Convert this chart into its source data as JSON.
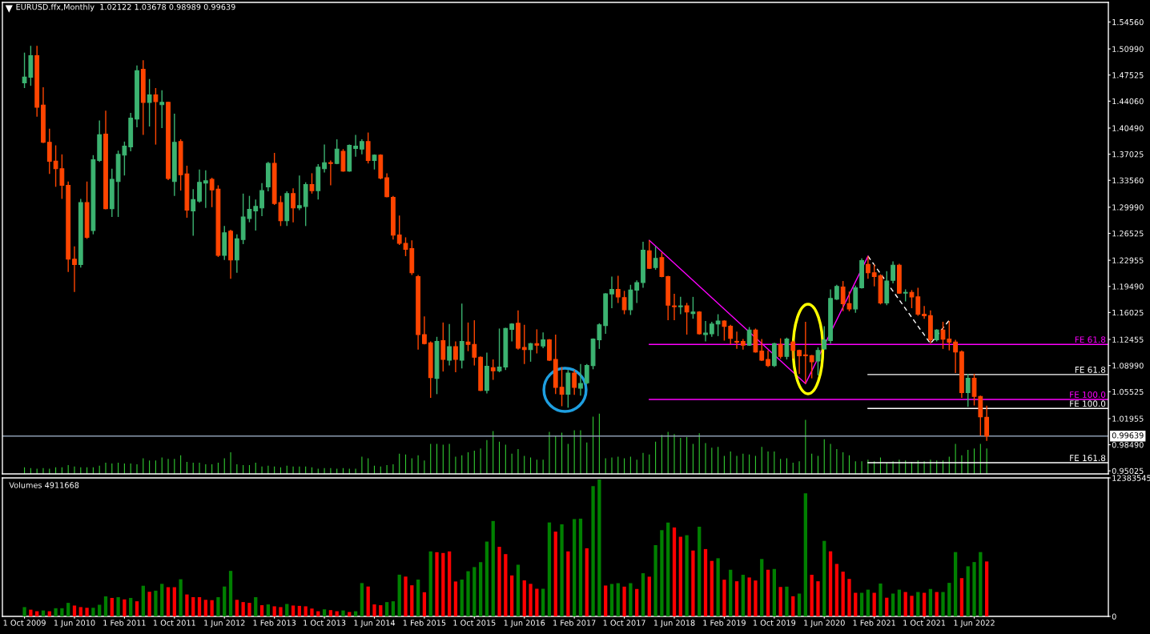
{
  "chart_data": [
    {
      "type": "candlestick",
      "title": "EURUSD.ffx,Monthly  1.02122 1.03678 0.98989 0.99639",
      "x": [
        "2009-10",
        "2009-11",
        "2009-12",
        "2010-01",
        "2010-02",
        "2010-03",
        "2010-04",
        "2010-05",
        "2010-06",
        "2010-07",
        "2010-08",
        "2010-09",
        "2010-10",
        "2010-11",
        "2010-12",
        "2011-01",
        "2011-02",
        "2011-03",
        "2011-04",
        "2011-05",
        "2011-06",
        "2011-07",
        "2011-08",
        "2011-09",
        "2011-10",
        "2011-11",
        "2011-12",
        "2012-01",
        "2012-02",
        "2012-03",
        "2012-04",
        "2012-05",
        "2012-06",
        "2012-07",
        "2012-08",
        "2012-09",
        "2012-10",
        "2012-11",
        "2012-12",
        "2013-01",
        "2013-02",
        "2013-03",
        "2013-04",
        "2013-05",
        "2013-06",
        "2013-07",
        "2013-08",
        "2013-09",
        "2013-10",
        "2013-11",
        "2013-12",
        "2014-01",
        "2014-02",
        "2014-03",
        "2014-04",
        "2014-05",
        "2014-06",
        "2014-07",
        "2014-08",
        "2014-09",
        "2014-10",
        "2014-11",
        "2014-12",
        "2015-01",
        "2015-02",
        "2015-03",
        "2015-04",
        "2015-05",
        "2015-06",
        "2015-07",
        "2015-08",
        "2015-09",
        "2015-10",
        "2015-11",
        "2015-12",
        "2016-01",
        "2016-02",
        "2016-03",
        "2016-04",
        "2016-05",
        "2016-06",
        "2016-07",
        "2016-08",
        "2016-09",
        "2016-10",
        "2016-11",
        "2016-12",
        "2017-01",
        "2017-02",
        "2017-03",
        "2017-04",
        "2017-05",
        "2017-06",
        "2017-07",
        "2017-08",
        "2017-09",
        "2017-10",
        "2017-11",
        "2017-12",
        "2018-01",
        "2018-02",
        "2018-03",
        "2018-04",
        "2018-05",
        "2018-06",
        "2018-07",
        "2018-08",
        "2018-09",
        "2018-10",
        "2018-11",
        "2018-12",
        "2019-01",
        "2019-02",
        "2019-03",
        "2019-04",
        "2019-05",
        "2019-06",
        "2019-07",
        "2019-08",
        "2019-09",
        "2019-10",
        "2019-11",
        "2019-12",
        "2020-01",
        "2020-02",
        "2020-03",
        "2020-04",
        "2020-05",
        "2020-06",
        "2020-07",
        "2020-08",
        "2020-09",
        "2020-10",
        "2020-11",
        "2020-12",
        "2021-01",
        "2021-02",
        "2021-03",
        "2021-04",
        "2021-05",
        "2021-06",
        "2021-07",
        "2021-08",
        "2021-09",
        "2021-10",
        "2021-11",
        "2021-12",
        "2022-01",
        "2022-02",
        "2022-03",
        "2022-04",
        "2022-05",
        "2022-06",
        "2022-07",
        "2022-08"
      ],
      "ohlc": [
        [
          1.465,
          1.505,
          1.458,
          1.4725
        ],
        [
          1.4725,
          1.514,
          1.461,
          1.501
        ],
        [
          1.501,
          1.514,
          1.42,
          1.4325
        ],
        [
          1.4354,
          1.459,
          1.385,
          1.386
        ],
        [
          1.386,
          1.404,
          1.344,
          1.361
        ],
        [
          1.361,
          1.382,
          1.327,
          1.351
        ],
        [
          1.351,
          1.37,
          1.311,
          1.329
        ],
        [
          1.329,
          1.334,
          1.214,
          1.231
        ],
        [
          1.231,
          1.248,
          1.1875,
          1.224
        ],
        [
          1.224,
          1.311,
          1.22,
          1.306
        ],
        [
          1.306,
          1.334,
          1.258,
          1.26
        ],
        [
          1.269,
          1.369,
          1.264,
          1.363
        ],
        [
          1.362,
          1.415,
          1.36,
          1.396
        ],
        [
          1.397,
          1.428,
          1.297,
          1.298
        ],
        [
          1.298,
          1.351,
          1.287,
          1.337
        ],
        [
          1.334,
          1.375,
          1.287,
          1.37
        ],
        [
          1.369,
          1.387,
          1.342,
          1.381
        ],
        [
          1.38,
          1.425,
          1.374,
          1.418
        ],
        [
          1.417,
          1.488,
          1.406,
          1.481
        ],
        [
          1.483,
          1.495,
          1.396,
          1.439
        ],
        [
          1.439,
          1.47,
          1.407,
          1.449
        ],
        [
          1.449,
          1.458,
          1.383,
          1.44
        ],
        [
          1.436,
          1.455,
          1.405,
          1.439
        ],
        [
          1.439,
          1.44,
          1.336,
          1.338
        ],
        [
          1.334,
          1.424,
          1.315,
          1.386
        ],
        [
          1.387,
          1.39,
          1.322,
          1.343
        ],
        [
          1.344,
          1.355,
          1.286,
          1.296
        ],
        [
          1.295,
          1.324,
          1.262,
          1.31
        ],
        [
          1.308,
          1.35,
          1.306,
          1.333
        ],
        [
          1.332,
          1.349,
          1.299,
          1.335
        ],
        [
          1.337,
          1.339,
          1.3,
          1.323
        ],
        [
          1.324,
          1.329,
          1.234,
          1.236
        ],
        [
          1.236,
          1.275,
          1.23,
          1.266
        ],
        [
          1.268,
          1.27,
          1.205,
          1.23
        ],
        [
          1.23,
          1.264,
          1.213,
          1.258
        ],
        [
          1.257,
          1.318,
          1.251,
          1.287
        ],
        [
          1.285,
          1.315,
          1.28,
          1.297
        ],
        [
          1.295,
          1.31,
          1.269,
          1.301
        ],
        [
          1.299,
          1.332,
          1.288,
          1.322
        ],
        [
          1.327,
          1.36,
          1.321,
          1.358
        ],
        [
          1.358,
          1.372,
          1.303,
          1.305
        ],
        [
          1.306,
          1.315,
          1.275,
          1.282
        ],
        [
          1.282,
          1.321,
          1.275,
          1.318
        ],
        [
          1.318,
          1.325,
          1.28,
          1.299
        ],
        [
          1.299,
          1.342,
          1.296,
          1.302
        ],
        [
          1.301,
          1.333,
          1.275,
          1.33
        ],
        [
          1.33,
          1.345,
          1.318,
          1.322
        ],
        [
          1.322,
          1.357,
          1.31,
          1.353
        ],
        [
          1.351,
          1.383,
          1.346,
          1.359
        ],
        [
          1.359,
          1.362,
          1.329,
          1.358
        ],
        [
          1.358,
          1.39,
          1.357,
          1.377
        ],
        [
          1.374,
          1.377,
          1.347,
          1.348
        ],
        [
          1.348,
          1.383,
          1.347,
          1.382
        ],
        [
          1.378,
          1.396,
          1.367,
          1.381
        ],
        [
          1.377,
          1.39,
          1.37,
          1.387
        ],
        [
          1.387,
          1.399,
          1.358,
          1.362
        ],
        [
          1.362,
          1.37,
          1.35,
          1.369
        ],
        [
          1.369,
          1.37,
          1.337,
          1.3385
        ],
        [
          1.339,
          1.345,
          1.313,
          1.314
        ],
        [
          1.313,
          1.315,
          1.257,
          1.263
        ],
        [
          1.263,
          1.289,
          1.25,
          1.252
        ],
        [
          1.252,
          1.26,
          1.235,
          1.244
        ],
        [
          1.245,
          1.256,
          1.21,
          1.213
        ],
        [
          1.208,
          1.21,
          1.111,
          1.131
        ],
        [
          1.131,
          1.155,
          1.118,
          1.119
        ],
        [
          1.12,
          1.122,
          1.047,
          1.074
        ],
        [
          1.073,
          1.128,
          1.052,
          1.122
        ],
        [
          1.123,
          1.147,
          1.082,
          1.098
        ],
        [
          1.097,
          1.145,
          1.09,
          1.115
        ],
        [
          1.115,
          1.122,
          1.081,
          1.098
        ],
        [
          1.097,
          1.172,
          1.086,
          1.122
        ],
        [
          1.121,
          1.147,
          1.109,
          1.118
        ],
        [
          1.118,
          1.15,
          1.09,
          1.101
        ],
        [
          1.101,
          1.102,
          1.056,
          1.057
        ],
        [
          1.057,
          1.107,
          1.053,
          1.089
        ],
        [
          1.087,
          1.098,
          1.071,
          1.083
        ],
        [
          1.083,
          1.139,
          1.081,
          1.088
        ],
        [
          1.088,
          1.14,
          1.084,
          1.139
        ],
        [
          1.138,
          1.146,
          1.122,
          1.145
        ],
        [
          1.146,
          1.163,
          1.111,
          1.113
        ],
        [
          1.114,
          1.144,
          1.092,
          1.111
        ],
        [
          1.111,
          1.12,
          1.095,
          1.119
        ],
        [
          1.119,
          1.138,
          1.106,
          1.117
        ],
        [
          1.116,
          1.134,
          1.113,
          1.124
        ],
        [
          1.124,
          1.125,
          1.096,
          1.097
        ],
        [
          1.098,
          1.131,
          1.052,
          1.061
        ],
        [
          1.061,
          1.088,
          1.036,
          1.052
        ],
        [
          1.052,
          1.084,
          1.034,
          1.08
        ],
        [
          1.08,
          1.084,
          1.051,
          1.061
        ],
        [
          1.06,
          1.092,
          1.05,
          1.066
        ],
        [
          1.067,
          1.092,
          1.065,
          1.09
        ],
        [
          1.09,
          1.126,
          1.085,
          1.125
        ],
        [
          1.124,
          1.146,
          1.112,
          1.144
        ],
        [
          1.143,
          1.186,
          1.132,
          1.185
        ],
        [
          1.185,
          1.208,
          1.166,
          1.191
        ],
        [
          1.191,
          1.209,
          1.173,
          1.181
        ],
        [
          1.18,
          1.189,
          1.158,
          1.164
        ],
        [
          1.164,
          1.197,
          1.157,
          1.19
        ],
        [
          1.19,
          1.203,
          1.173,
          1.2
        ],
        [
          1.2,
          1.254,
          1.193,
          1.243
        ],
        [
          1.242,
          1.256,
          1.218,
          1.219
        ],
        [
          1.22,
          1.248,
          1.217,
          1.232
        ],
        [
          1.233,
          1.24,
          1.207,
          1.208
        ],
        [
          1.208,
          1.209,
          1.15,
          1.17
        ],
        [
          1.169,
          1.185,
          1.15,
          1.168
        ],
        [
          1.168,
          1.181,
          1.158,
          1.169
        ],
        [
          1.169,
          1.173,
          1.131,
          1.161
        ],
        [
          1.159,
          1.181,
          1.152,
          1.161
        ],
        [
          1.161,
          1.162,
          1.131,
          1.132
        ],
        [
          1.131,
          1.149,
          1.122,
          1.133
        ],
        [
          1.132,
          1.148,
          1.128,
          1.145
        ],
        [
          1.145,
          1.158,
          1.129,
          1.149
        ],
        [
          1.149,
          1.15,
          1.123,
          1.142
        ],
        [
          1.142,
          1.144,
          1.118,
          1.126
        ],
        [
          1.122,
          1.135,
          1.112,
          1.121
        ],
        [
          1.122,
          1.125,
          1.111,
          1.117
        ],
        [
          1.117,
          1.141,
          1.116,
          1.137
        ],
        [
          1.137,
          1.139,
          1.107,
          1.108
        ],
        [
          1.109,
          1.125,
          1.096,
          1.097
        ],
        [
          1.098,
          1.11,
          1.088,
          1.09
        ],
        [
          1.09,
          1.12,
          1.088,
          1.119
        ],
        [
          1.118,
          1.126,
          1.099,
          1.102
        ],
        [
          1.102,
          1.127,
          1.098,
          1.125
        ],
        [
          1.121,
          1.123,
          1.099,
          1.11
        ],
        [
          1.11,
          1.111,
          1.079,
          1.103
        ],
        [
          1.104,
          1.148,
          1.066,
          1.103
        ],
        [
          1.103,
          1.104,
          1.073,
          1.095
        ],
        [
          1.096,
          1.114,
          1.077,
          1.11
        ],
        [
          1.112,
          1.142,
          1.111,
          1.124
        ],
        [
          1.123,
          1.191,
          1.119,
          1.179
        ],
        [
          1.178,
          1.197,
          1.177,
          1.195
        ],
        [
          1.194,
          1.202,
          1.162,
          1.172
        ],
        [
          1.172,
          1.188,
          1.162,
          1.165
        ],
        [
          1.165,
          1.196,
          1.16,
          1.193
        ],
        [
          1.193,
          1.232,
          1.192,
          1.229
        ],
        [
          1.224,
          1.235,
          1.205,
          1.213
        ],
        [
          1.213,
          1.224,
          1.195,
          1.208
        ],
        [
          1.209,
          1.211,
          1.171,
          1.173
        ],
        [
          1.173,
          1.215,
          1.17,
          1.202
        ],
        [
          1.203,
          1.228,
          1.199,
          1.223
        ],
        [
          1.223,
          1.225,
          1.185,
          1.186
        ],
        [
          1.186,
          1.191,
          1.175,
          1.187
        ],
        [
          1.187,
          1.19,
          1.166,
          1.181
        ],
        [
          1.181,
          1.193,
          1.156,
          1.158
        ],
        [
          1.158,
          1.169,
          1.152,
          1.156
        ],
        [
          1.156,
          1.163,
          1.119,
          1.124
        ],
        [
          1.124,
          1.138,
          1.122,
          1.137
        ],
        [
          1.137,
          1.148,
          1.112,
          1.125
        ],
        [
          1.125,
          1.149,
          1.11,
          1.121
        ],
        [
          1.121,
          1.124,
          1.08,
          1.108
        ],
        [
          1.108,
          1.11,
          1.047,
          1.054
        ],
        [
          1.054,
          1.079,
          1.035,
          1.073
        ],
        [
          1.073,
          1.079,
          1.037,
          1.049
        ],
        [
          1.049,
          1.05,
          0.997,
          1.022
        ],
        [
          1.02122,
          1.03678,
          0.98989,
          0.99639
        ]
      ],
      "colors": [
        "#3cb371",
        "#3cb371",
        "#ff4500",
        "#ff4500",
        "#ff4500",
        "#ff4500",
        "#ff4500",
        "#ff4500",
        "#ff4500",
        "#3cb371",
        "#ff4500",
        "#3cb371",
        "#3cb371",
        "#ff4500",
        "#3cb371",
        "#3cb371",
        "#3cb371",
        "#3cb371",
        "#3cb371",
        "#ff4500",
        "#3cb371",
        "#ff4500",
        "#3cb371",
        "#ff4500",
        "#3cb371",
        "#ff4500",
        "#ff4500",
        "#3cb371",
        "#3cb371",
        "#3cb371",
        "#ff4500",
        "#ff4500",
        "#3cb371",
        "#ff4500",
        "#3cb371",
        "#3cb371",
        "#3cb371",
        "#3cb371",
        "#3cb371",
        "#3cb371",
        "#ff4500",
        "#ff4500",
        "#3cb371",
        "#ff4500",
        "#3cb371",
        "#3cb371",
        "#ff4500",
        "#3cb371",
        "#3cb371",
        "#ff4500",
        "#3cb371",
        "#ff4500",
        "#3cb371",
        "#3cb371",
        "#3cb371",
        "#ff4500",
        "#3cb371",
        "#ff4500",
        "#ff4500",
        "#ff4500",
        "#ff4500",
        "#ff4500",
        "#ff4500",
        "#ff4500",
        "#ff4500",
        "#ff4500",
        "#3cb371",
        "#ff4500",
        "#3cb371",
        "#ff4500",
        "#3cb371",
        "#ff4500",
        "#ff4500",
        "#ff4500",
        "#3cb371",
        "#ff4500",
        "#3cb371",
        "#3cb371",
        "#3cb371",
        "#ff4500",
        "#ff4500",
        "#3cb371",
        "#ff4500",
        "#3cb371",
        "#ff4500",
        "#ff4500",
        "#ff4500",
        "#3cb371",
        "#ff4500",
        "#3cb371",
        "#3cb371",
        "#3cb371",
        "#3cb371",
        "#3cb371",
        "#3cb371",
        "#ff4500",
        "#ff4500",
        "#3cb371",
        "#3cb371",
        "#3cb371",
        "#ff4500",
        "#3cb371",
        "#ff4500",
        "#ff4500",
        "#ff4500",
        "#3cb371",
        "#ff4500",
        "#3cb371",
        "#ff4500",
        "#3cb371",
        "#3cb371",
        "#3cb371",
        "#ff4500",
        "#ff4500",
        "#ff4500",
        "#ff4500",
        "#3cb371",
        "#ff4500",
        "#ff4500",
        "#ff4500",
        "#3cb371",
        "#ff4500",
        "#3cb371",
        "#ff4500",
        "#ff4500",
        "#ff4500",
        "#ff4500",
        "#3cb371",
        "#3cb371",
        "#3cb371",
        "#3cb371",
        "#ff4500",
        "#ff4500",
        "#3cb371",
        "#3cb371",
        "#ff4500",
        "#ff4500",
        "#ff4500",
        "#3cb371",
        "#3cb371",
        "#ff4500",
        "#3cb371",
        "#ff4500",
        "#ff4500",
        "#ff4500",
        "#ff4500",
        "#3cb371",
        "#ff4500",
        "#ff4500",
        "#ff4500",
        "#ff4500",
        "#3cb371",
        "#ff4500",
        "#ff4500",
        "#ff4500"
      ],
      "xlim": [
        "2009-06-15",
        "2024-03-15"
      ],
      "ylim": [
        0.9462,
        1.5716
      ],
      "yticks": [
        {
          "value": 1.5456,
          "label": "1.54560"
        },
        {
          "value": 1.5099,
          "label": "1.50990"
        },
        {
          "value": 1.47525,
          "label": "1.47525"
        },
        {
          "value": 1.4406,
          "label": "1.44060"
        },
        {
          "value": 1.4049,
          "label": "1.40490"
        },
        {
          "value": 1.37025,
          "label": "1.37025"
        },
        {
          "value": 1.3356,
          "label": "1.33560"
        },
        {
          "value": 1.2999,
          "label": "1.29990"
        },
        {
          "value": 1.26525,
          "label": "1.26525"
        },
        {
          "value": 1.22955,
          "label": "1.22955"
        },
        {
          "value": 1.1949,
          "label": "1.19490"
        },
        {
          "value": 1.16025,
          "label": "1.16025"
        },
        {
          "value": 1.12455,
          "label": "1.12455"
        },
        {
          "value": 1.0899,
          "label": "1.08990"
        },
        {
          "value": 1.05525,
          "label": "1.05525"
        },
        {
          "value": 1.01955,
          "label": "1.01955"
        },
        {
          "value": 0.9849,
          "label": "0.98490"
        },
        {
          "value": 0.95025,
          "label": "0.95025"
        }
      ],
      "tick_labels": "y",
      "ref_lines": [
        {
          "axis": "y",
          "value": 0.99639,
          "label": "0.99639",
          "color": "#8c9cb0"
        }
      ],
      "series": [
        {
          "type": "bar",
          "color": "#32cd32",
          "values": [
            0.955,
            0.954,
            0.953,
            0.954,
            0.953,
            0.955,
            0.955,
            0.958,
            0.956,
            0.955,
            0.955,
            0.955,
            0.957,
            0.961,
            0.96,
            0.961,
            0.96,
            0.96,
            0.959,
            0.967,
            0.964,
            0.964,
            0.968,
            0.966,
            0.966,
            0.971,
            0.962,
            0.961,
            0.961,
            0.959,
            0.959,
            0.961,
            0.967,
            0.975,
            0.959,
            0.958,
            0.958,
            0.961,
            0.956,
            0.957,
            0.956,
            0.955,
            0.957,
            0.956,
            0.956,
            0.956,
            0.955,
            0.953,
            0.954,
            0.954,
            0.953,
            0.954,
            0.953,
            0.953,
            0.969,
            0.967,
            0.957,
            0.956,
            0.958,
            0.959,
            0.973,
            0.972,
            0.967,
            0.971,
            0.964,
            0.986,
            0.986,
            0.985,
            0.986,
            0.969,
            0.971,
            0.975,
            0.977,
            0.98,
            0.991,
            1.003,
            0.989,
            0.985,
            0.973,
            0.979,
            0.97,
            0.968,
            0.965,
            0.965,
            1.002,
            0.997,
            1.001,
            0.986,
            1.004,
            1.004,
            0.988,
            1.022,
            1.026,
            0.967,
            0.968,
            0.969,
            0.967,
            0.969,
            0.965,
            0.974,
            0.972,
            0.989,
            0.998,
            1.002,
            0.999,
            0.994,
            0.995,
            0.986,
            1.0,
            0.987,
            0.981,
            0.982,
            0.97,
            0.976,
            0.97,
            0.973,
            0.972,
            0.97,
            0.982,
            0.976,
            0.976,
            0.966,
            0.967,
            0.961,
            0.963,
            1.018,
            0.973,
            0.97,
            0.992,
            0.986,
            0.979,
            0.975,
            0.971,
            0.963,
            0.963,
            0.965,
            0.963,
            0.968,
            0.961,
            0.963,
            0.965,
            0.964,
            0.962,
            0.964,
            0.963,
            0.965,
            0.964,
            0.964,
            0.969,
            0.986,
            0.971,
            0.978,
            0.98,
            0.986,
            0.98
          ]
        },
        {
          "type": "line",
          "color": "#ff00ff",
          "x": [
            "2018-02",
            "2020-03",
            "2021-01"
          ],
          "values": [
            1.256,
            1.066,
            1.235
          ]
        },
        {
          "type": "line",
          "color": "#ffffff",
          "line_style": "dashed",
          "x": [
            "2021-01",
            "2021-11",
            "2022-02"
          ],
          "values": [
            1.235,
            1.119,
            1.15
          ]
        },
        {
          "type": "line",
          "color": "#ff00ff",
          "x": [
            "2018-02",
            "2024-03-15"
          ],
          "values": [
            1.118,
            1.118
          ]
        },
        {
          "type": "line",
          "color": "#ff00ff",
          "x": [
            "2018-02",
            "2024-03-15"
          ],
          "values": [
            1.045,
            1.045
          ]
        },
        {
          "type": "line",
          "color": "#ffffff",
          "x": [
            "2021-01",
            "2024-03-15"
          ],
          "values": [
            1.078,
            1.078
          ]
        },
        {
          "type": "line",
          "color": "#ffffff",
          "x": [
            "2021-01",
            "2024-03-15"
          ],
          "values": [
            1.033,
            1.033
          ]
        },
        {
          "type": "line",
          "color": "#ffffff",
          "x": [
            "2021-01",
            "2024-03-15"
          ],
          "values": [
            0.961,
            0.961
          ]
        }
      ],
      "annotations": [
        {
          "text": "FE 61.8",
          "x": "2024-03-15",
          "y": 1.118
        },
        {
          "text": "FE 100.0",
          "x": "2024-03-15",
          "y": 1.045
        },
        {
          "text": "FE 61.8",
          "x": "2024-03-15",
          "y": 1.078
        },
        {
          "text": "FE 100.0",
          "x": "2024-03-15",
          "y": 1.033
        },
        {
          "text": "FE 161.8",
          "x": "2024-03-15",
          "y": 0.961
        }
      ],
      "grid": false,
      "legend": false
    },
    {
      "type": "bar",
      "x": [
        "2009-10",
        "2009-11",
        "2009-12",
        "2010-01",
        "2010-02",
        "2010-03",
        "2010-04",
        "2010-05",
        "2010-06",
        "2010-07",
        "2010-08",
        "2010-09",
        "2010-10",
        "2010-11",
        "2010-12",
        "2011-01",
        "2011-02",
        "2011-03",
        "2011-04",
        "2011-05",
        "2011-06",
        "2011-07",
        "2011-08",
        "2011-09",
        "2011-10",
        "2011-11",
        "2011-12",
        "2012-01",
        "2012-02",
        "2012-03",
        "2012-04",
        "2012-05",
        "2012-06",
        "2012-07",
        "2012-08",
        "2012-09",
        "2012-10",
        "2012-11",
        "2012-12",
        "2013-01",
        "2013-02",
        "2013-03",
        "2013-04",
        "2013-05",
        "2013-06",
        "2013-07",
        "2013-08",
        "2013-09",
        "2013-10",
        "2013-11",
        "2013-12",
        "2014-01",
        "2014-02",
        "2014-03",
        "2014-04",
        "2014-05",
        "2014-06",
        "2014-07",
        "2014-08",
        "2014-09",
        "2014-10",
        "2014-11",
        "2014-12",
        "2015-01",
        "2015-02",
        "2015-03",
        "2015-04",
        "2015-05",
        "2015-06",
        "2015-07",
        "2015-08",
        "2015-09",
        "2015-10",
        "2015-11",
        "2015-12",
        "2016-01",
        "2016-02",
        "2016-03",
        "2016-04",
        "2016-05",
        "2016-06",
        "2016-07",
        "2016-08",
        "2016-09",
        "2016-10",
        "2016-11",
        "2016-12",
        "2017-01",
        "2017-02",
        "2017-03",
        "2017-04",
        "2017-05",
        "2017-06",
        "2017-07",
        "2017-08",
        "2017-09",
        "2017-10",
        "2017-11",
        "2017-12",
        "2018-01",
        "2018-02",
        "2018-03",
        "2018-04",
        "2018-05",
        "2018-06",
        "2018-07",
        "2018-08",
        "2018-09",
        "2018-10",
        "2018-11",
        "2018-12",
        "2019-01",
        "2019-02",
        "2019-03",
        "2019-04",
        "2019-05",
        "2019-06",
        "2019-07",
        "2019-08",
        "2019-09",
        "2019-10",
        "2019-11",
        "2019-12",
        "2020-01",
        "2020-02",
        "2020-03",
        "2020-04",
        "2020-05",
        "2020-06",
        "2020-07",
        "2020-08",
        "2020-09",
        "2020-10",
        "2020-11",
        "2020-12",
        "2021-01",
        "2021-02",
        "2021-03",
        "2021-04",
        "2021-05",
        "2021-06",
        "2021-07",
        "2021-08",
        "2021-09",
        "2021-10",
        "2021-11",
        "2021-12",
        "2022-01",
        "2022-02",
        "2022-03",
        "2022-04",
        "2022-05",
        "2022-06",
        "2022-07",
        "2022-08"
      ],
      "values": [
        830000,
        600000,
        460000,
        530000,
        460000,
        730000,
        730000,
        1210000,
        970000,
        830000,
        770000,
        770000,
        1040000,
        1790000,
        1650000,
        1720000,
        1520000,
        1650000,
        1350000,
        2740000,
        2200000,
        2300000,
        2910000,
        2610000,
        2610000,
        3320000,
        1960000,
        1720000,
        1720000,
        1480000,
        1450000,
        1720000,
        2670000,
        4070000,
        1480000,
        1280000,
        1210000,
        1720000,
        1000000,
        1070000,
        900000,
        830000,
        1110000,
        970000,
        940000,
        900000,
        700000,
        460000,
        630000,
        560000,
        460000,
        530000,
        390000,
        460000,
        2980000,
        2670000,
        1070000,
        1000000,
        1280000,
        1350000,
        3730000,
        3560000,
        2780000,
        3290000,
        2160000,
        5810000,
        5740000,
        5670000,
        5810000,
        3120000,
        3290000,
        4040000,
        4410000,
        4850000,
        6690000,
        8530000,
        6220000,
        5570000,
        3660000,
        4620000,
        3220000,
        2910000,
        2470000,
        2470000,
        8400000,
        7580000,
        8230000,
        5810000,
        8700000,
        8740000,
        6090000,
        11650000,
        12240000,
        2760000,
        2900000,
        2970000,
        2660000,
        2970000,
        2450000,
        3860000,
        3550000,
        6370000,
        7710000,
        8390000,
        7950000,
        7120000,
        7260000,
        5890000,
        8020000,
        6020000,
        4960000,
        5200000,
        3280000,
        4170000,
        3140000,
        3720000,
        3480000,
        3210000,
        5130000,
        4170000,
        4240000,
        2630000,
        2660000,
        1800000,
        2040000,
        11000000,
        3720000,
        3140000,
        6750000,
        5820000,
        4690000,
        4000000,
        3350000,
        2110000,
        2110000,
        2390000,
        2110000,
        2940000,
        1670000,
        2040000,
        2390000,
        2180000,
        1840000,
        2180000,
        2110000,
        2450000,
        2180000,
        2180000,
        3000000,
        5750000,
        3420000,
        4480000,
        4860000,
        5750000,
        4911668
      ],
      "colors": [
        "#008000",
        "#ff0000",
        "#ff0000",
        "#008000",
        "#ff0000",
        "#008000",
        "#008000",
        "#008000",
        "#ff0000",
        "#ff0000",
        "#ff0000",
        "#008000",
        "#008000",
        "#008000",
        "#ff0000",
        "#008000",
        "#ff0000",
        "#008000",
        "#ff0000",
        "#008000",
        "#ff0000",
        "#008000",
        "#008000",
        "#ff0000",
        "#ff0000",
        "#008000",
        "#ff0000",
        "#ff0000",
        "#ff0000",
        "#ff0000",
        "#ff0000",
        "#008000",
        "#008000",
        "#008000",
        "#ff0000",
        "#ff0000",
        "#ff0000",
        "#008000",
        "#ff0000",
        "#008000",
        "#ff0000",
        "#ff0000",
        "#008000",
        "#ff0000",
        "#ff0000",
        "#ff0000",
        "#ff0000",
        "#ff0000",
        "#008000",
        "#ff0000",
        "#ff0000",
        "#008000",
        "#ff0000",
        "#008000",
        "#008000",
        "#ff0000",
        "#ff0000",
        "#ff0000",
        "#008000",
        "#008000",
        "#008000",
        "#ff0000",
        "#ff0000",
        "#008000",
        "#ff0000",
        "#008000",
        "#ff0000",
        "#ff0000",
        "#ff0000",
        "#ff0000",
        "#008000",
        "#008000",
        "#008000",
        "#008000",
        "#008000",
        "#008000",
        "#ff0000",
        "#ff0000",
        "#ff0000",
        "#008000",
        "#ff0000",
        "#ff0000",
        "#ff0000",
        "#008000",
        "#008000",
        "#ff0000",
        "#008000",
        "#ff0000",
        "#008000",
        "#008000",
        "#ff0000",
        "#008000",
        "#008000",
        "#ff0000",
        "#008000",
        "#008000",
        "#ff0000",
        "#008000",
        "#ff0000",
        "#008000",
        "#ff0000",
        "#008000",
        "#008000",
        "#008000",
        "#ff0000",
        "#ff0000",
        "#008000",
        "#ff0000",
        "#008000",
        "#ff0000",
        "#ff0000",
        "#008000",
        "#ff0000",
        "#008000",
        "#ff0000",
        "#008000",
        "#ff0000",
        "#ff0000",
        "#008000",
        "#ff0000",
        "#008000",
        "#ff0000",
        "#008000",
        "#ff0000",
        "#008000",
        "#008000",
        "#ff0000",
        "#ff0000",
        "#008000",
        "#ff0000",
        "#ff0000",
        "#ff0000",
        "#ff0000",
        "#ff0000",
        "#008000",
        "#008000",
        "#ff0000",
        "#008000",
        "#ff0000",
        "#008000",
        "#008000",
        "#ff0000",
        "#ff0000",
        "#008000",
        "#ff0000",
        "#008000",
        "#ff0000",
        "#008000",
        "#008000",
        "#008000",
        "#ff0000",
        "#008000",
        "#008000",
        "#008000",
        "#ff0000"
      ],
      "xlim": [
        "2009-06-15",
        "2024-03-15"
      ],
      "ylim": [
        0,
        12383545
      ],
      "yticks": [
        0,
        12383545
      ],
      "xticks": [
        {
          "value": "2009-10",
          "label": "1 Oct 2009"
        },
        {
          "value": "2010-06",
          "label": "1 Jun 2010"
        },
        {
          "value": "2011-02",
          "label": "1 Feb 2011"
        },
        {
          "value": "2011-10",
          "label": "1 Oct 2011"
        },
        {
          "value": "2012-06",
          "label": "1 Jun 2012"
        },
        {
          "value": "2013-02",
          "label": "1 Feb 2013"
        },
        {
          "value": "2013-10",
          "label": "1 Oct 2013"
        },
        {
          "value": "2014-06",
          "label": "1 Jun 2014"
        },
        {
          "value": "2015-02",
          "label": "1 Feb 2015"
        },
        {
          "value": "2015-10",
          "label": "1 Oct 2015"
        },
        {
          "value": "2016-06",
          "label": "1 Jun 2016"
        },
        {
          "value": "2017-02",
          "label": "1 Feb 2017"
        },
        {
          "value": "2017-10",
          "label": "1 Oct 2017"
        },
        {
          "value": "2018-06",
          "label": "1 Jun 2018"
        },
        {
          "value": "2019-02",
          "label": "1 Feb 2019"
        },
        {
          "value": "2019-10",
          "label": "1 Oct 2019"
        },
        {
          "value": "2020-06",
          "label": "1 Jun 2020"
        },
        {
          "value": "2021-02",
          "label": "1 Feb 2021"
        },
        {
          "value": "2021-10",
          "label": "1 Oct 2021"
        },
        {
          "value": "2022-06",
          "label": "1 Jun 2022"
        }
      ],
      "annotations": [
        "Volumes 4911668"
      ],
      "grid": false,
      "legend": false
    }
  ]
}
